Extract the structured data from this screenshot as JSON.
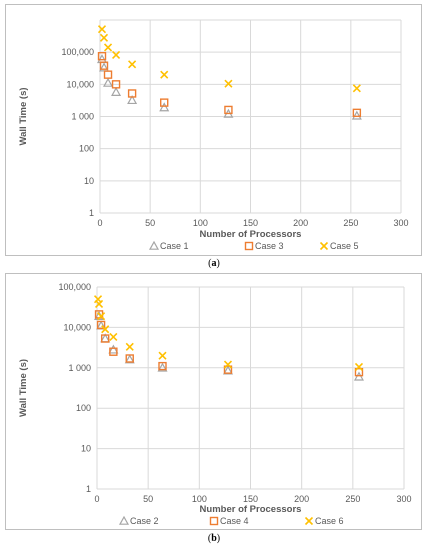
{
  "captions": {
    "a": "a",
    "b": "b"
  },
  "chart_data": [
    {
      "type": "scatter",
      "panel": "a",
      "title": "",
      "xlabel": "Number of Processors",
      "ylabel": "Wall Time (s)",
      "xlim": [
        0,
        300
      ],
      "ylim": [
        1,
        1000000
      ],
      "yscale": "log",
      "xticks": [
        0,
        50,
        100,
        150,
        200,
        250,
        300
      ],
      "xtick_labels": [
        "0",
        "50",
        "100",
        "150",
        "200",
        "250",
        "300"
      ],
      "yticks": [
        1,
        10,
        100,
        1000,
        10000,
        100000
      ],
      "ytick_labels": [
        "1",
        "10",
        "100",
        "1 000",
        "10,000",
        "100,000"
      ],
      "grid": true,
      "legend_position": "bottom",
      "series": [
        {
          "name": "Case 1",
          "marker": "triangle",
          "color": "#a5a5a5",
          "x": [
            2,
            4,
            8,
            16,
            32,
            64,
            128,
            256
          ],
          "y": [
            60000,
            33000,
            11000,
            5700,
            3200,
            1900,
            1200,
            1050
          ]
        },
        {
          "name": "Case 3",
          "marker": "square",
          "color": "#ed7d31",
          "x": [
            2,
            4,
            8,
            16,
            32,
            64,
            128,
            256
          ],
          "y": [
            75000,
            38000,
            20000,
            10000,
            5200,
            2700,
            1600,
            1300
          ]
        },
        {
          "name": "Case 5",
          "marker": "x",
          "color": "#ffc000",
          "x": [
            2,
            4,
            8,
            16,
            32,
            64,
            128,
            256
          ],
          "y": [
            520000,
            280000,
            140000,
            82000,
            42000,
            20000,
            10500,
            7500
          ]
        }
      ]
    },
    {
      "type": "scatter",
      "panel": "b",
      "title": "",
      "xlabel": "Number of Processors",
      "ylabel": "Wall Time (s)",
      "xlim": [
        0,
        300
      ],
      "ylim": [
        1,
        100000
      ],
      "yscale": "log",
      "xticks": [
        0,
        50,
        100,
        150,
        200,
        250,
        300
      ],
      "xtick_labels": [
        "0",
        "50",
        "100",
        "150",
        "200",
        "250",
        "300"
      ],
      "yticks": [
        1,
        10,
        100,
        1000,
        10000,
        100000
      ],
      "ytick_labels": [
        "1",
        "10",
        "100",
        "1 000",
        "10,000",
        "100,000"
      ],
      "grid": true,
      "legend_position": "bottom",
      "series": [
        {
          "name": "Case 2",
          "marker": "triangle",
          "color": "#a5a5a5",
          "x": [
            2,
            4,
            8,
            16,
            32,
            64,
            128,
            256
          ],
          "y": [
            19000,
            11000,
            5300,
            2800,
            1600,
            1000,
            850,
            600
          ]
        },
        {
          "name": "Case 4",
          "marker": "square",
          "color": "#ed7d31",
          "x": [
            2,
            4,
            8,
            16,
            32,
            64,
            128,
            256
          ],
          "y": [
            21000,
            11500,
            5300,
            2500,
            1700,
            1100,
            900,
            780
          ]
        },
        {
          "name": "Case 6",
          "marker": "x",
          "color": "#ffc000",
          "x": [
            1,
            2,
            4,
            8,
            16,
            32,
            64,
            128,
            256
          ],
          "y": [
            50000,
            38000,
            19000,
            9000,
            5800,
            3300,
            2000,
            1200,
            1050
          ]
        }
      ]
    }
  ]
}
